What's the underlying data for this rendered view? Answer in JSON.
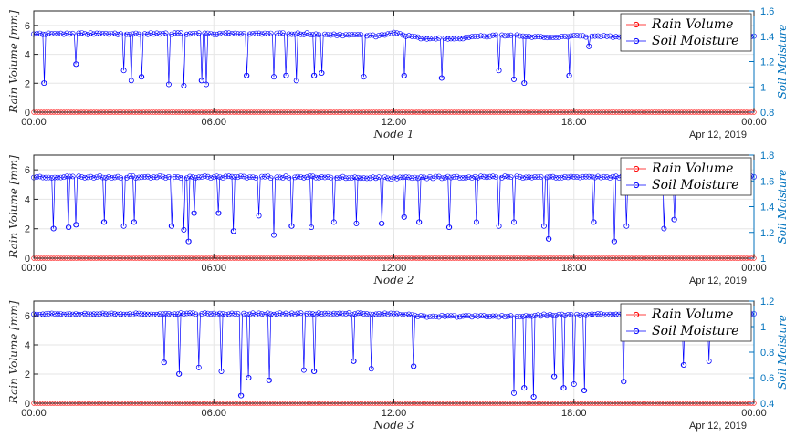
{
  "chart_data": [
    {
      "type": "line",
      "xlabel": "Node 1",
      "date_label": "Apr 12, 2019",
      "x_ticks": [
        "00:00",
        "06:00",
        "12:00",
        "18:00",
        "00:00"
      ],
      "ylabel_left": "Rain Volume [mm]",
      "ylabel_right": "Soil Moisture",
      "ylim_left": [
        0,
        7
      ],
      "yticks_left": [
        "0",
        "2",
        "4",
        "6"
      ],
      "ylim_right": [
        0.8,
        1.6
      ],
      "yticks_right": [
        "0.8",
        "1",
        "1.2",
        "1.4",
        "1.6"
      ],
      "grid": true,
      "legend_position": "top-right",
      "series": [
        {
          "name": "Rain Volume",
          "axis": "left",
          "color": "#ff0000",
          "marker": "circle",
          "points": [
            [
              "00:00",
              0
            ],
            [
              "24:00",
              0
            ]
          ],
          "note_constant": 0
        },
        {
          "name": "Soil Moisture",
          "axis": "right",
          "color": "#0000ff",
          "marker": "circle",
          "points": [
            [
              "00:00",
              1.42
            ],
            [
              "01:00",
              1.42
            ],
            [
              "02:00",
              1.42
            ],
            [
              "03:00",
              1.42
            ],
            [
              "04:00",
              1.42
            ],
            [
              "05:00",
              1.42
            ],
            [
              "06:00",
              1.42
            ],
            [
              "07:00",
              1.42
            ],
            [
              "08:00",
              1.42
            ],
            [
              "09:00",
              1.42
            ],
            [
              "10:00",
              1.41
            ],
            [
              "11:00",
              1.41
            ],
            [
              "11:30",
              1.4
            ],
            [
              "12:00",
              1.43
            ],
            [
              "12:30",
              1.4
            ],
            [
              "13:00",
              1.38
            ],
            [
              "14:00",
              1.38
            ],
            [
              "15:00",
              1.4
            ],
            [
              "16:00",
              1.41
            ],
            [
              "16:30",
              1.4
            ],
            [
              "17:00",
              1.39
            ],
            [
              "18:00",
              1.4
            ],
            [
              "19:00",
              1.4
            ],
            [
              "20:00",
              1.39
            ],
            [
              "21:00",
              1.38
            ],
            [
              "22:00",
              1.38
            ],
            [
              "23:00",
              1.39
            ],
            [
              "24:00",
              1.4
            ]
          ],
          "dips": [
            [
              "00:20",
              1.03
            ],
            [
              "01:25",
              1.18
            ],
            [
              "03:00",
              1.13
            ],
            [
              "03:15",
              1.05
            ],
            [
              "03:35",
              1.08
            ],
            [
              "04:30",
              1.02
            ],
            [
              "05:00",
              1.01
            ],
            [
              "05:35",
              1.05
            ],
            [
              "05:45",
              1.02
            ],
            [
              "07:05",
              1.09
            ],
            [
              "08:00",
              1.08
            ],
            [
              "08:25",
              1.09
            ],
            [
              "08:45",
              1.05
            ],
            [
              "09:20",
              1.09
            ],
            [
              "09:35",
              1.11
            ],
            [
              "11:00",
              1.08
            ],
            [
              "12:20",
              1.09
            ],
            [
              "13:35",
              1.07
            ],
            [
              "15:30",
              1.13
            ],
            [
              "16:00",
              1.06
            ],
            [
              "16:20",
              1.03
            ],
            [
              "17:50",
              1.09
            ],
            [
              "18:30",
              1.32
            ]
          ]
        }
      ]
    },
    {
      "type": "line",
      "xlabel": "Node 2",
      "date_label": "Apr 12, 2019",
      "x_ticks": [
        "00:00",
        "06:00",
        "12:00",
        "18:00",
        "00:00"
      ],
      "ylabel_left": "Rain Volume [mm]",
      "ylabel_right": "Soil Moisture",
      "ylim_left": [
        0,
        7
      ],
      "yticks_left": [
        "0",
        "2",
        "4",
        "6"
      ],
      "ylim_right": [
        1.0,
        1.8
      ],
      "yticks_right": [
        "1",
        "1.2",
        "1.4",
        "1.6",
        "1.8"
      ],
      "grid": true,
      "legend_position": "top-right",
      "series": [
        {
          "name": "Rain Volume",
          "axis": "left",
          "color": "#ff0000",
          "marker": "circle",
          "points": [
            [
              "00:00",
              0
            ],
            [
              "24:00",
              0
            ]
          ],
          "note_constant": 0
        },
        {
          "name": "Soil Moisture",
          "axis": "right",
          "color": "#0000ff",
          "marker": "circle",
          "points": [
            [
              "00:00",
              1.63
            ],
            [
              "02:00",
              1.63
            ],
            [
              "04:00",
              1.63
            ],
            [
              "06:00",
              1.63
            ],
            [
              "08:00",
              1.63
            ],
            [
              "10:00",
              1.63
            ],
            [
              "12:00",
              1.62
            ],
            [
              "14:00",
              1.63
            ],
            [
              "16:00",
              1.63
            ],
            [
              "18:00",
              1.63
            ],
            [
              "20:00",
              1.63
            ],
            [
              "22:00",
              1.63
            ],
            [
              "24:00",
              1.63
            ]
          ],
          "dips": [
            [
              "00:40",
              1.23
            ],
            [
              "01:10",
              1.24
            ],
            [
              "01:25",
              1.26
            ],
            [
              "02:20",
              1.28
            ],
            [
              "03:00",
              1.25
            ],
            [
              "03:20",
              1.28
            ],
            [
              "04:35",
              1.25
            ],
            [
              "05:00",
              1.22
            ],
            [
              "05:10",
              1.13
            ],
            [
              "05:20",
              1.35
            ],
            [
              "06:10",
              1.35
            ],
            [
              "06:40",
              1.21
            ],
            [
              "07:30",
              1.33
            ],
            [
              "08:00",
              1.18
            ],
            [
              "08:35",
              1.25
            ],
            [
              "09:15",
              1.24
            ],
            [
              "10:00",
              1.28
            ],
            [
              "10:45",
              1.27
            ],
            [
              "11:35",
              1.27
            ],
            [
              "12:20",
              1.32
            ],
            [
              "12:50",
              1.28
            ],
            [
              "13:50",
              1.24
            ],
            [
              "14:45",
              1.28
            ],
            [
              "15:30",
              1.25
            ],
            [
              "16:00",
              1.28
            ],
            [
              "17:00",
              1.25
            ],
            [
              "17:10",
              1.15
            ],
            [
              "18:40",
              1.28
            ],
            [
              "19:20",
              1.13
            ],
            [
              "19:45",
              1.25
            ],
            [
              "21:00",
              1.23
            ],
            [
              "21:20",
              1.3
            ]
          ]
        }
      ]
    },
    {
      "type": "line",
      "xlabel": "Node 3",
      "date_label": "Apr 12, 2019",
      "x_ticks": [
        "00:00",
        "06:00",
        "12:00",
        "18:00",
        "00:00"
      ],
      "ylabel_left": "Rain Volume [mm]",
      "ylabel_right": "Soil Moisture",
      "ylim_left": [
        0,
        7
      ],
      "yticks_left": [
        "0",
        "2",
        "4",
        "6"
      ],
      "ylim_right": [
        0.4,
        1.2
      ],
      "yticks_right": [
        "0.4",
        "0.6",
        "0.8",
        "1",
        "1.2"
      ],
      "grid": true,
      "legend_position": "top-right",
      "series": [
        {
          "name": "Rain Volume",
          "axis": "left",
          "color": "#ff0000",
          "marker": "circle",
          "points": [
            [
              "00:00",
              0
            ],
            [
              "24:00",
              0
            ]
          ],
          "note_constant": 0
        },
        {
          "name": "Soil Moisture",
          "axis": "right",
          "color": "#0000ff",
          "marker": "circle",
          "points": [
            [
              "00:00",
              1.1
            ],
            [
              "02:00",
              1.1
            ],
            [
              "04:00",
              1.1
            ],
            [
              "06:00",
              1.1
            ],
            [
              "08:00",
              1.1
            ],
            [
              "10:00",
              1.1
            ],
            [
              "12:00",
              1.1
            ],
            [
              "13:00",
              1.08
            ],
            [
              "14:00",
              1.08
            ],
            [
              "16:00",
              1.08
            ],
            [
              "17:00",
              1.09
            ],
            [
              "18:00",
              1.09
            ],
            [
              "20:00",
              1.1
            ],
            [
              "22:00",
              1.1
            ],
            [
              "24:00",
              1.1
            ]
          ],
          "dips": [
            [
              "04:20",
              0.72
            ],
            [
              "04:50",
              0.63
            ],
            [
              "05:30",
              0.68
            ],
            [
              "06:15",
              0.65
            ],
            [
              "06:55",
              0.46
            ],
            [
              "07:10",
              0.6
            ],
            [
              "07:50",
              0.58
            ],
            [
              "09:00",
              0.66
            ],
            [
              "09:20",
              0.65
            ],
            [
              "10:40",
              0.73
            ],
            [
              "11:15",
              0.67
            ],
            [
              "12:40",
              0.69
            ],
            [
              "16:00",
              0.48
            ],
            [
              "16:20",
              0.52
            ],
            [
              "16:40",
              0.45
            ],
            [
              "17:20",
              0.61
            ],
            [
              "17:40",
              0.52
            ],
            [
              "18:00",
              0.55
            ],
            [
              "18:20",
              0.5
            ],
            [
              "19:40",
              0.57
            ],
            [
              "21:40",
              0.7
            ],
            [
              "22:30",
              0.73
            ]
          ]
        }
      ]
    }
  ]
}
